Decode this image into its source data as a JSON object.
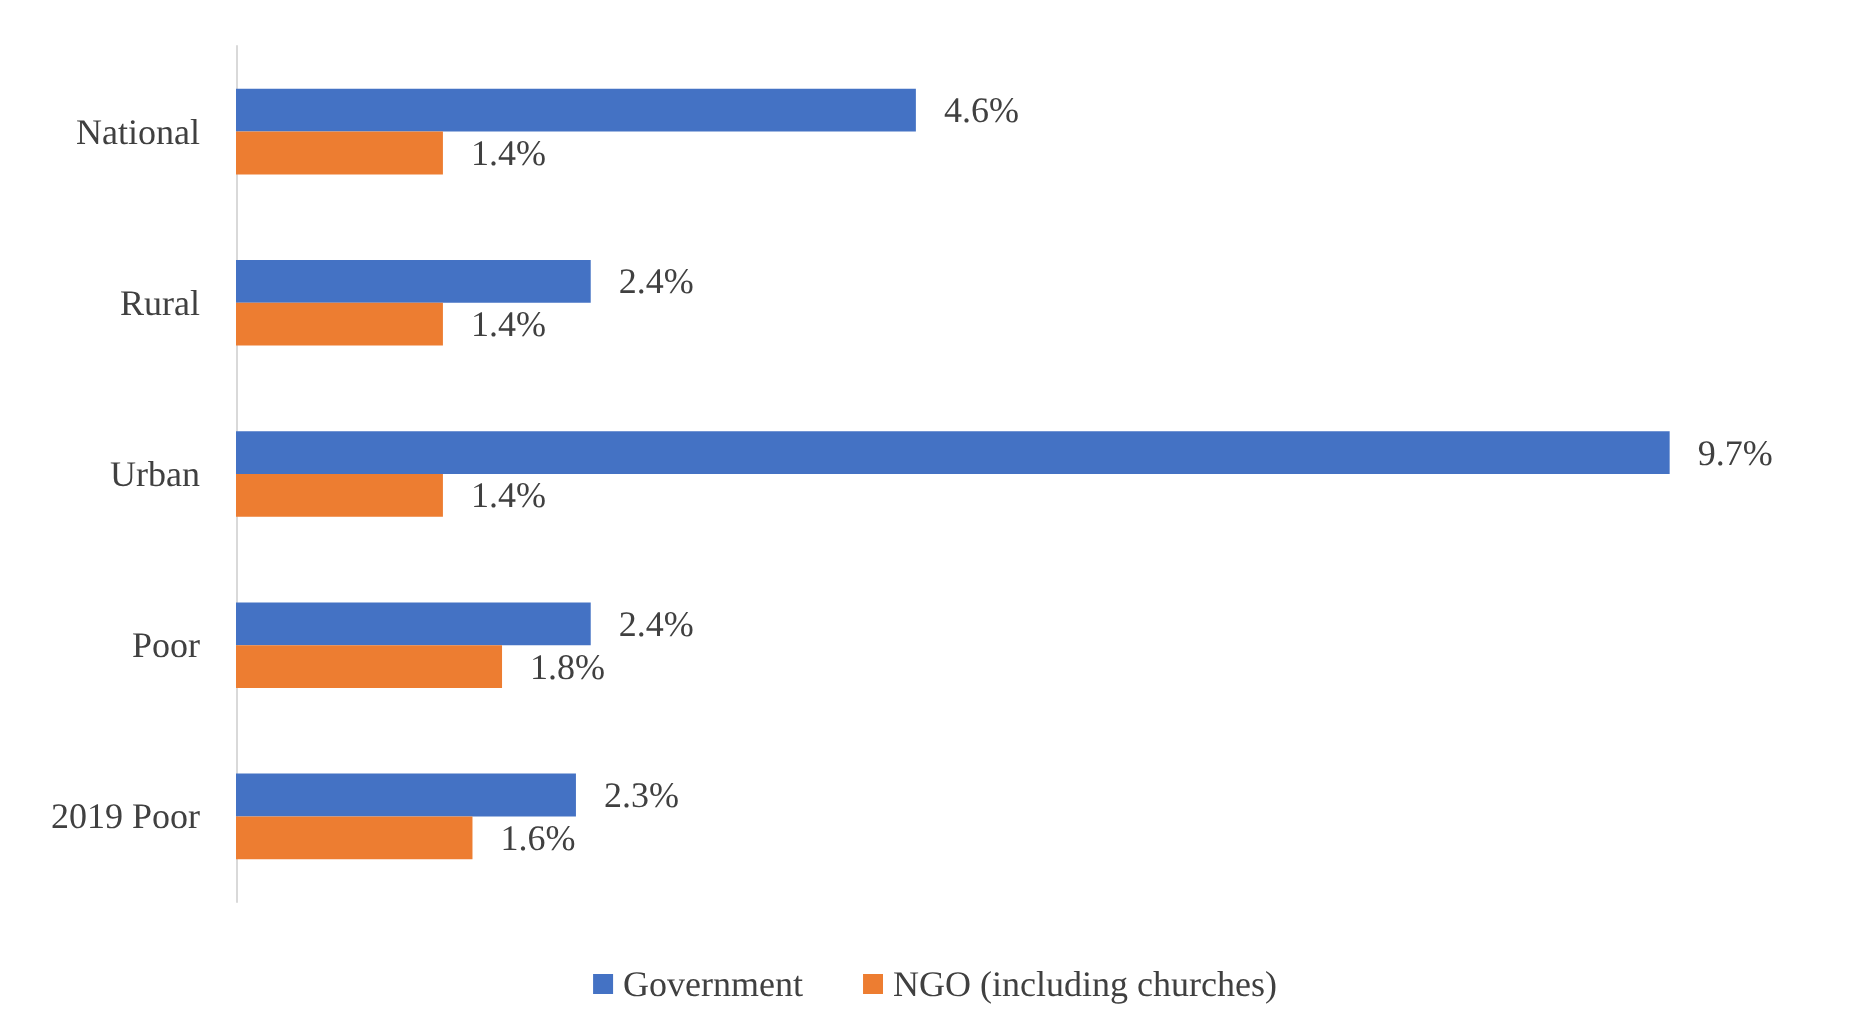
{
  "chart_data": {
    "type": "bar",
    "orientation": "horizontal",
    "categories": [
      "National",
      "Rural",
      "Urban",
      "Poor",
      "2019 Poor"
    ],
    "series": [
      {
        "name": "Government",
        "color": "#4472c4",
        "values": [
          4.6,
          2.4,
          9.7,
          2.4,
          2.3
        ],
        "value_labels": [
          "4.6%",
          "2.4%",
          "9.7%",
          "2.4%",
          "2.3%"
        ]
      },
      {
        "name": "NGO (including churches)",
        "color": "#ed7d31",
        "values": [
          1.4,
          1.4,
          1.4,
          1.8,
          1.6
        ],
        "value_labels": [
          "1.4%",
          "1.4%",
          "1.4%",
          "1.8%",
          "1.6%"
        ]
      }
    ],
    "grid": false,
    "legend": "bottom"
  }
}
